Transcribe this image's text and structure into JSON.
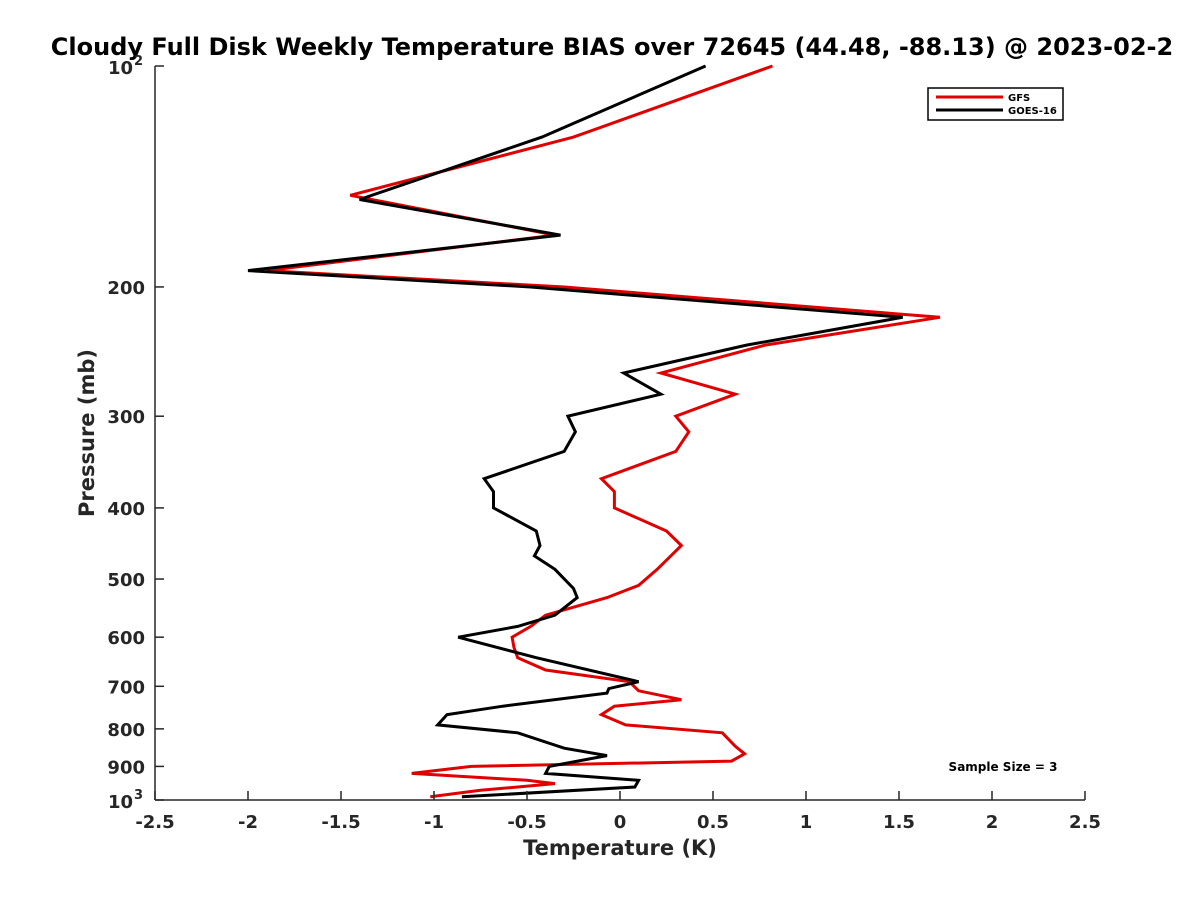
{
  "chart_data": {
    "type": "line",
    "title": "Cloudy Full Disk Weekly Temperature BIAS over 72645 (44.48, -88.13) @ 2023-02-2",
    "xlabel": "Temperature (K)",
    "ylabel": "Pressure (mb)",
    "xlim": [
      -2.5,
      2.5
    ],
    "ylim": [
      100,
      1000
    ],
    "y_scale": "log",
    "y_reversed": true,
    "x_ticks": [
      "-2.5",
      "-2",
      "-1.5",
      "-1",
      "-0.5",
      "0",
      "0.5",
      "1",
      "1.5",
      "2",
      "2.5"
    ],
    "y_ticks": [
      {
        "value": 100,
        "base": "10",
        "exp": "2"
      },
      {
        "value": 200,
        "label": "200"
      },
      {
        "value": 300,
        "label": "300"
      },
      {
        "value": 400,
        "label": "400"
      },
      {
        "value": 500,
        "label": "500"
      },
      {
        "value": 600,
        "label": "600"
      },
      {
        "value": 700,
        "label": "700"
      },
      {
        "value": 800,
        "label": "800"
      },
      {
        "value": 900,
        "label": "900"
      },
      {
        "value": 1000,
        "base": "10",
        "exp": "3"
      }
    ],
    "grid": false,
    "legend_position": "top-right",
    "annotation": "Sample Size = 3",
    "series": [
      {
        "name": "GFS",
        "color": "#e00000",
        "points": [
          [
            0.82,
            100
          ],
          [
            -0.25,
            125
          ],
          [
            -1.45,
            150
          ],
          [
            -0.35,
            170
          ],
          [
            -1.9,
            190
          ],
          [
            -0.3,
            200
          ],
          [
            1.72,
            220
          ],
          [
            0.78,
            240
          ],
          [
            0.22,
            262
          ],
          [
            0.62,
            280
          ],
          [
            0.3,
            300
          ],
          [
            0.37,
            315
          ],
          [
            0.3,
            335
          ],
          [
            -0.1,
            365
          ],
          [
            -0.03,
            380
          ],
          [
            -0.03,
            400
          ],
          [
            0.25,
            430
          ],
          [
            0.33,
            450
          ],
          [
            0.2,
            485
          ],
          [
            0.1,
            510
          ],
          [
            -0.07,
            530
          ],
          [
            -0.4,
            560
          ],
          [
            -0.48,
            580
          ],
          [
            -0.58,
            600
          ],
          [
            -0.57,
            620
          ],
          [
            -0.55,
            640
          ],
          [
            -0.4,
            665
          ],
          [
            0.05,
            690
          ],
          [
            0.1,
            710
          ],
          [
            0.33,
            730
          ],
          [
            -0.03,
            745
          ],
          [
            -0.1,
            765
          ],
          [
            0.03,
            790
          ],
          [
            0.55,
            810
          ],
          [
            0.62,
            845
          ],
          [
            0.67,
            865
          ],
          [
            0.6,
            885
          ],
          [
            -0.8,
            900
          ],
          [
            -1.12,
            920
          ],
          [
            -0.5,
            940
          ],
          [
            -0.35,
            950
          ],
          [
            -0.75,
            970
          ],
          [
            -1.02,
            990
          ]
        ]
      },
      {
        "name": "GOES-16",
        "color": "#000000",
        "points": [
          [
            0.46,
            100
          ],
          [
            -0.42,
            125
          ],
          [
            -1.4,
            152
          ],
          [
            -0.32,
            170
          ],
          [
            -2.0,
            190
          ],
          [
            -0.48,
            200
          ],
          [
            1.52,
            220
          ],
          [
            0.68,
            240
          ],
          [
            0.02,
            262
          ],
          [
            0.22,
            280
          ],
          [
            -0.28,
            300
          ],
          [
            -0.24,
            315
          ],
          [
            -0.3,
            335
          ],
          [
            -0.73,
            365
          ],
          [
            -0.68,
            380
          ],
          [
            -0.68,
            400
          ],
          [
            -0.45,
            430
          ],
          [
            -0.43,
            450
          ],
          [
            -0.46,
            465
          ],
          [
            -0.35,
            485
          ],
          [
            -0.25,
            515
          ],
          [
            -0.23,
            530
          ],
          [
            -0.35,
            560
          ],
          [
            -0.55,
            580
          ],
          [
            -0.87,
            600
          ],
          [
            -0.45,
            640
          ],
          [
            0.1,
            690
          ],
          [
            -0.06,
            705
          ],
          [
            -0.07,
            715
          ],
          [
            -0.63,
            745
          ],
          [
            -0.93,
            765
          ],
          [
            -0.98,
            790
          ],
          [
            -0.55,
            810
          ],
          [
            -0.3,
            850
          ],
          [
            -0.07,
            870
          ],
          [
            -0.38,
            900
          ],
          [
            -0.4,
            920
          ],
          [
            0.1,
            940
          ],
          [
            0.08,
            960
          ],
          [
            -0.85,
            990
          ]
        ]
      }
    ]
  }
}
